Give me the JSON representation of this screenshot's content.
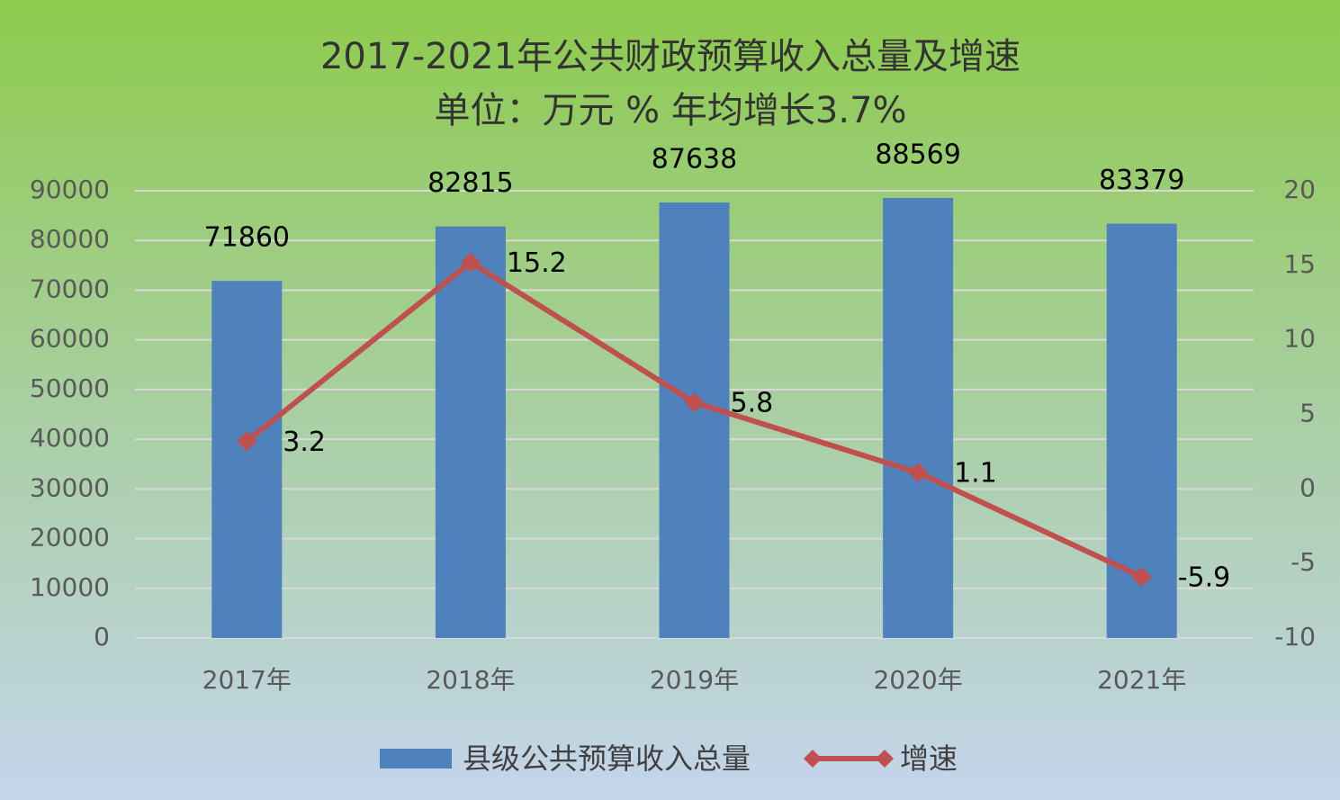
{
  "chart_data": {
    "type": "bar-line",
    "title": "2017-2021年公共财政预算收入总量及增速",
    "subtitle": "单位：万元  % 年均增长3.7%",
    "categories": [
      "2017年",
      "2018年",
      "2019年",
      "2020年",
      "2021年"
    ],
    "series": [
      {
        "name": "县级公共预算收入总量",
        "color": "#4f81bd",
        "type": "bar",
        "values": [
          71860,
          82815,
          87638,
          88569,
          83379
        ]
      },
      {
        "name": "增速",
        "color": "#c0504d",
        "type": "line",
        "axis": "y2",
        "values": [
          3.2,
          15.2,
          5.8,
          1.1,
          -5.9
        ]
      }
    ],
    "ylim": [
      0,
      90000
    ],
    "yticks": [
      0,
      10000,
      20000,
      30000,
      40000,
      50000,
      60000,
      70000,
      80000,
      90000
    ],
    "y2lim": [
      -10,
      20
    ],
    "y2ticks": [
      -10,
      -5,
      0,
      5,
      10,
      15,
      20
    ],
    "grid": true,
    "legend": "bottom"
  }
}
